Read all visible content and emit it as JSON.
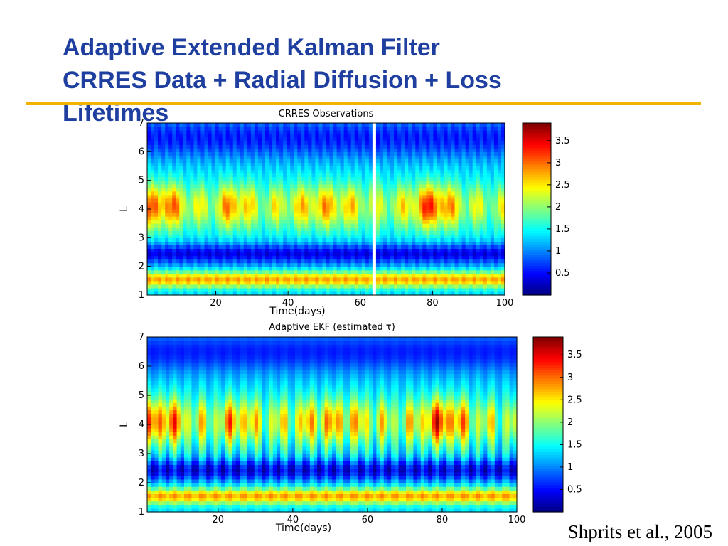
{
  "slide": {
    "title_line1": "Adaptive Extended Kalman Filter",
    "title_line2": "CRRES Data + Radial Diffusion + Loss",
    "title_line3": "Lifetimes",
    "citation": "Shprits et al., 2005",
    "title_color": "#1f3fa0",
    "rule_color": "#f0b400"
  },
  "chart_data": [
    {
      "type": "heatmap",
      "title": "CRRES Observations",
      "xlabel": "Time(days)",
      "ylabel": "L",
      "xlim": [
        1,
        100
      ],
      "ylim": [
        1,
        7
      ],
      "xticks": [
        20,
        40,
        60,
        80,
        100
      ],
      "yticks": [
        1,
        2,
        3,
        4,
        5,
        6,
        7
      ],
      "colormap": "jet",
      "colorbar_range": [
        0,
        3.9
      ],
      "colorbar_ticks": [
        0.5,
        1,
        1.5,
        2,
        2.5,
        3,
        3.5
      ],
      "data_gap_days": [
        63,
        64
      ]
    },
    {
      "type": "heatmap",
      "title": "Adaptive EKF (estimated τ)",
      "xlabel": "Time(days)",
      "ylabel": "L",
      "xlim": [
        1,
        100
      ],
      "ylim": [
        1,
        7
      ],
      "xticks": [
        20,
        40,
        60,
        80,
        100
      ],
      "yticks": [
        1,
        2,
        3,
        4,
        5,
        6,
        7
      ],
      "colormap": "jet",
      "colorbar_range": [
        0,
        3.9
      ],
      "colorbar_ticks": [
        0.5,
        1,
        1.5,
        2,
        2.5,
        3,
        3.5
      ]
    }
  ]
}
